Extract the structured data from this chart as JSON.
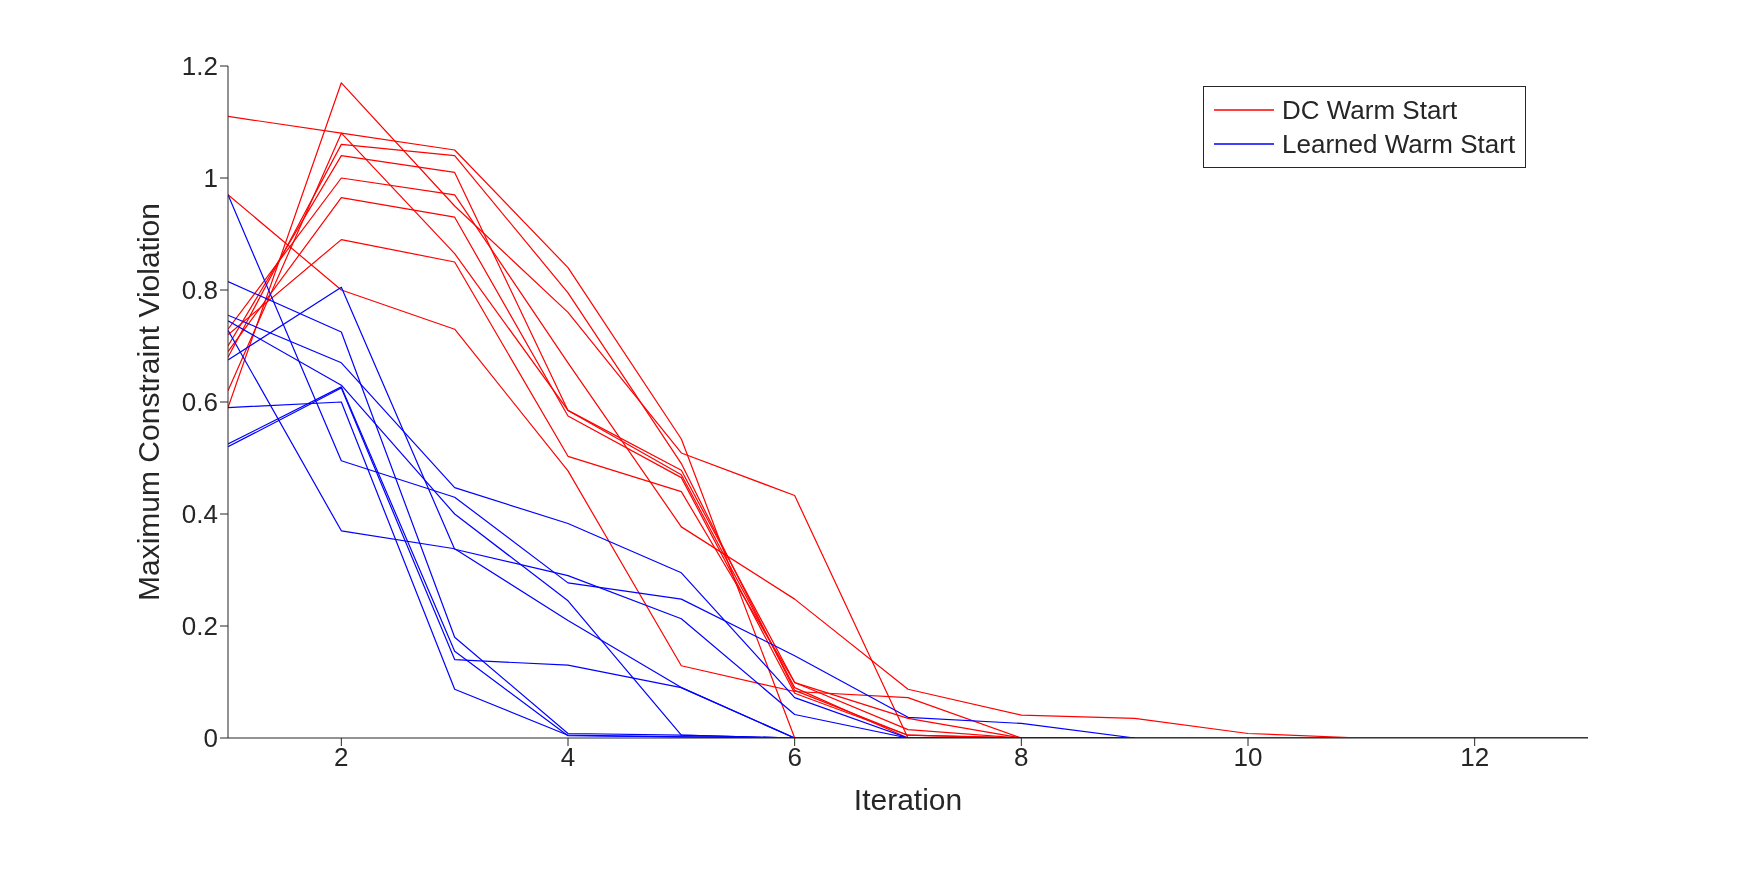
{
  "chart_data": {
    "type": "line",
    "xlabel": "Iteration",
    "ylabel": "Maximum Constraint Violation",
    "x": [
      1,
      2,
      3,
      4,
      5,
      6,
      7,
      8,
      9,
      10,
      11,
      12,
      13
    ],
    "xlim": [
      1,
      13
    ],
    "xticks": [
      2,
      4,
      6,
      8,
      10,
      12
    ],
    "ylim": [
      0,
      1.2
    ],
    "yticks": [
      0,
      0.2,
      0.4,
      0.6,
      0.8,
      1,
      1.2
    ],
    "grid": false,
    "legend": "top right",
    "marker": "none",
    "line_style": "solid",
    "series": [
      {
        "name": "DC Warm Start",
        "color": "#ff0000",
        "values": [
          1.11,
          1.08,
          1.05,
          0.84,
          0.534,
          0,
          0,
          0,
          0,
          0,
          0,
          0,
          0
        ]
      },
      {
        "color": "#ff0000",
        "values": [
          0.97,
          0.8,
          0.73,
          0.477,
          0.129,
          0.083,
          0.072,
          0,
          0,
          0,
          0,
          0,
          0
        ]
      },
      {
        "color": "#ff0000",
        "values": [
          0.59,
          1.17,
          0.95,
          0.76,
          0.509,
          0.433,
          0,
          0,
          0,
          0,
          0,
          0,
          0
        ]
      },
      {
        "color": "#ff0000",
        "values": [
          0.62,
          1.08,
          0.865,
          0.585,
          0.47,
          0.09,
          0,
          0,
          0,
          0,
          0,
          0,
          0
        ]
      },
      {
        "color": "#ff0000",
        "values": [
          0.68,
          1.06,
          1.04,
          0.795,
          0.49,
          0.085,
          0.005,
          0,
          0,
          0,
          0,
          0,
          0
        ]
      },
      {
        "color": "#ff0000",
        "values": [
          0.7,
          1.04,
          1.01,
          0.585,
          0.478,
          0.099,
          0.015,
          0,
          0,
          0,
          0,
          0,
          0
        ]
      },
      {
        "color": "#ff0000",
        "values": [
          0.73,
          1,
          0.97,
          0.67,
          0.377,
          0.248,
          0.087,
          0.041,
          0.035,
          0.008,
          0,
          0,
          0
        ]
      },
      {
        "color": "#ff0000",
        "values": [
          0.69,
          0.965,
          0.93,
          0.575,
          0.465,
          0.08,
          0.005,
          0,
          0,
          0,
          0,
          0,
          0
        ]
      },
      {
        "color": "#ff0000",
        "values": [
          0.72,
          0.89,
          0.85,
          0.503,
          0.44,
          0.099,
          0.035,
          0,
          0,
          0,
          0,
          0,
          0
        ]
      },
      {
        "name": "Learned Warm Start",
        "color": "#0000ff",
        "values": [
          0.97,
          0.495,
          0.43,
          0.277,
          0.248,
          0.147,
          0.037,
          0.026,
          0,
          null,
          null,
          null,
          null
        ]
      },
      {
        "color": "#0000ff",
        "values": [
          0.815,
          0.725,
          0.18,
          0.008,
          0.005,
          0,
          0,
          0,
          0,
          null,
          null,
          null,
          null
        ]
      },
      {
        "color": "#0000ff",
        "values": [
          0.755,
          0.67,
          0.447,
          0.383,
          0.295,
          0.072,
          0,
          0,
          0,
          null,
          null,
          null,
          null
        ]
      },
      {
        "color": "#0000ff",
        "values": [
          0.745,
          0.63,
          0.4,
          0.245,
          0.005,
          0,
          0,
          0,
          0,
          null,
          null,
          null,
          null
        ]
      },
      {
        "color": "#0000ff",
        "values": [
          0.675,
          0.805,
          0.337,
          0.29,
          0.213,
          0.042,
          0,
          0,
          0,
          null,
          null,
          null,
          null
        ]
      },
      {
        "color": "#0000ff",
        "values": [
          0.59,
          0.6,
          0.087,
          0.005,
          0.002,
          0,
          0,
          0,
          0,
          null,
          null,
          null,
          null
        ]
      },
      {
        "color": "#0000ff",
        "values": [
          0.525,
          0.627,
          0.155,
          0.004,
          0.002,
          0,
          0,
          0,
          0,
          null,
          null,
          null,
          null
        ]
      },
      {
        "color": "#0000ff",
        "values": [
          0.52,
          0.625,
          0.14,
          0.13,
          0.09,
          0,
          0,
          0,
          0,
          null,
          null,
          null,
          null
        ]
      },
      {
        "color": "#0000ff",
        "values": [
          0.728,
          0.37,
          0.338,
          0.21,
          0.09,
          0,
          0,
          0,
          0,
          null,
          null,
          null,
          null
        ]
      }
    ]
  }
}
